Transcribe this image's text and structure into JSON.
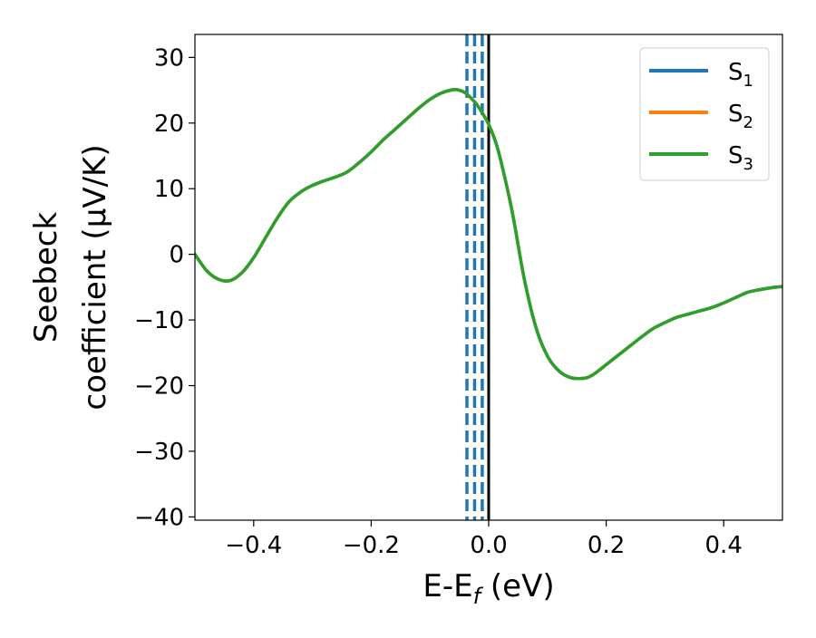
{
  "chart_data": {
    "type": "line",
    "title": "",
    "xlabel": {
      "base": "E-E",
      "subscript": "f",
      "suffix": " (eV)"
    },
    "ylabel": {
      "line1": "Seebeck",
      "line2": "coefficient  (μV/K)"
    },
    "xlim": [
      -0.5,
      0.5
    ],
    "ylim": [
      -40.5,
      33.5
    ],
    "xticks": [
      -0.4,
      -0.2,
      0.0,
      0.2,
      0.4
    ],
    "xtick_labels": [
      "−0.4",
      "−0.2",
      "0.0",
      "0.2",
      "0.4"
    ],
    "yticks": [
      -40,
      -30,
      -20,
      -10,
      0,
      10,
      20,
      30
    ],
    "ytick_labels": [
      "−40",
      "−30",
      "−20",
      "−10",
      "0",
      "10",
      "20",
      "30"
    ],
    "grid": false,
    "legend_position": "top-right",
    "series": [
      {
        "name": "S",
        "subscript": "1",
        "color": "#1f77b4",
        "x": [
          -0.5,
          -0.48,
          -0.46,
          -0.44,
          -0.42,
          -0.4,
          -0.38,
          -0.36,
          -0.34,
          -0.32,
          -0.3,
          -0.28,
          -0.26,
          -0.24,
          -0.22,
          -0.2,
          -0.18,
          -0.16,
          -0.14,
          -0.12,
          -0.1,
          -0.08,
          -0.06,
          -0.05,
          -0.04,
          -0.03,
          -0.02,
          -0.01,
          0.0,
          0.01,
          0.02,
          0.04,
          0.06,
          0.08,
          0.1,
          0.12,
          0.14,
          0.16,
          0.17,
          0.18,
          0.2,
          0.22,
          0.24,
          0.26,
          0.28,
          0.3,
          0.32,
          0.34,
          0.36,
          0.38,
          0.4,
          0.42,
          0.44,
          0.46,
          0.48,
          0.5
        ],
        "y": [
          0.0,
          -2.5,
          -3.8,
          -4.0,
          -2.8,
          -0.5,
          2.5,
          5.5,
          8.0,
          9.5,
          10.5,
          11.2,
          11.8,
          12.6,
          14.0,
          15.6,
          17.4,
          19.0,
          20.6,
          22.2,
          23.6,
          24.6,
          25.1,
          25.0,
          24.6,
          23.8,
          22.8,
          21.4,
          19.8,
          17.6,
          14.5,
          6.5,
          -3.5,
          -11.0,
          -15.5,
          -17.8,
          -18.8,
          -18.9,
          -18.7,
          -18.2,
          -16.8,
          -15.4,
          -14.0,
          -12.6,
          -11.3,
          -10.4,
          -9.6,
          -9.1,
          -8.6,
          -8.1,
          -7.4,
          -6.6,
          -5.8,
          -5.4,
          -5.1,
          -4.9
        ]
      },
      {
        "name": "S",
        "subscript": "2",
        "color": "#ff7f0e",
        "x": [
          -0.5,
          -0.48,
          -0.46,
          -0.44,
          -0.42,
          -0.4,
          -0.38,
          -0.36,
          -0.34,
          -0.32,
          -0.3,
          -0.28,
          -0.26,
          -0.24,
          -0.22,
          -0.2,
          -0.18,
          -0.16,
          -0.14,
          -0.12,
          -0.1,
          -0.08,
          -0.06,
          -0.05,
          -0.04,
          -0.03,
          -0.02,
          -0.01,
          0.0,
          0.01,
          0.02,
          0.04,
          0.06,
          0.08,
          0.1,
          0.12,
          0.14,
          0.16,
          0.17,
          0.18,
          0.2,
          0.22,
          0.24,
          0.26,
          0.28,
          0.3,
          0.32,
          0.34,
          0.36,
          0.38,
          0.4,
          0.42,
          0.44,
          0.46,
          0.48,
          0.5
        ],
        "y": [
          0.0,
          -2.5,
          -3.8,
          -4.0,
          -2.8,
          -0.5,
          2.5,
          5.5,
          8.0,
          9.5,
          10.5,
          11.2,
          11.8,
          12.6,
          14.0,
          15.6,
          17.4,
          19.0,
          20.6,
          22.2,
          23.6,
          24.6,
          25.1,
          25.0,
          24.6,
          23.8,
          22.8,
          21.4,
          19.8,
          17.6,
          14.5,
          6.5,
          -3.5,
          -11.0,
          -15.5,
          -17.8,
          -18.8,
          -18.9,
          -18.7,
          -18.2,
          -16.8,
          -15.4,
          -14.0,
          -12.6,
          -11.3,
          -10.4,
          -9.6,
          -9.1,
          -8.6,
          -8.1,
          -7.4,
          -6.6,
          -5.8,
          -5.4,
          -5.1,
          -4.9
        ]
      },
      {
        "name": "S",
        "subscript": "3",
        "color": "#2ca02c",
        "x": [
          -0.5,
          -0.48,
          -0.46,
          -0.44,
          -0.42,
          -0.4,
          -0.38,
          -0.36,
          -0.34,
          -0.32,
          -0.3,
          -0.28,
          -0.26,
          -0.24,
          -0.22,
          -0.2,
          -0.18,
          -0.16,
          -0.14,
          -0.12,
          -0.1,
          -0.08,
          -0.06,
          -0.05,
          -0.04,
          -0.03,
          -0.02,
          -0.01,
          0.0,
          0.01,
          0.02,
          0.04,
          0.06,
          0.08,
          0.1,
          0.12,
          0.14,
          0.16,
          0.17,
          0.18,
          0.2,
          0.22,
          0.24,
          0.26,
          0.28,
          0.3,
          0.32,
          0.34,
          0.36,
          0.38,
          0.4,
          0.42,
          0.44,
          0.46,
          0.48,
          0.5
        ],
        "y": [
          0.0,
          -2.5,
          -3.8,
          -4.0,
          -2.8,
          -0.5,
          2.5,
          5.5,
          8.0,
          9.5,
          10.5,
          11.2,
          11.8,
          12.6,
          14.0,
          15.6,
          17.4,
          19.0,
          20.6,
          22.2,
          23.6,
          24.6,
          25.1,
          25.0,
          24.6,
          23.8,
          22.8,
          21.4,
          19.8,
          17.6,
          14.5,
          6.5,
          -3.5,
          -11.0,
          -15.5,
          -17.8,
          -18.8,
          -18.9,
          -18.7,
          -18.2,
          -16.8,
          -15.4,
          -14.0,
          -12.6,
          -11.3,
          -10.4,
          -9.6,
          -9.1,
          -8.6,
          -8.1,
          -7.4,
          -6.6,
          -5.8,
          -5.4,
          -5.1,
          -4.9
        ]
      }
    ],
    "vertical_lines": [
      {
        "x": -0.037,
        "color": "#1f77b4",
        "style": "dashed"
      },
      {
        "x": -0.024,
        "color": "#1f77b4",
        "style": "dashed"
      },
      {
        "x": -0.011,
        "color": "#1f77b4",
        "style": "dashed"
      },
      {
        "x": 0.0,
        "color": "#000000",
        "style": "solid"
      }
    ]
  }
}
